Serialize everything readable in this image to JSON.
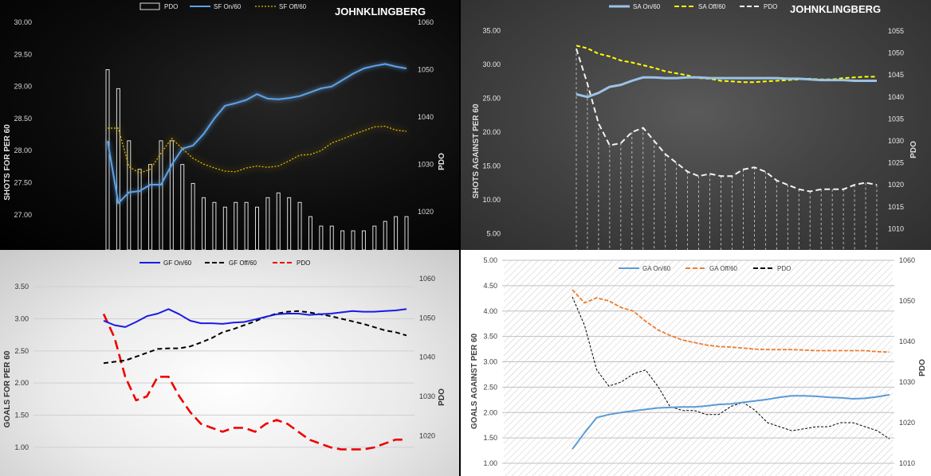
{
  "chart_data": [
    {
      "id": "p1",
      "type": "line+bar",
      "watermark": "JOHNKLINGBERG",
      "ylabel": "SHOTS FOR PER 60",
      "y2label": "PDO",
      "ylim": [
        26.75,
        30.0
      ],
      "yticks": [
        "30.00",
        "29.50",
        "29.00",
        "28.50",
        "28.00",
        "27.50",
        "27.00"
      ],
      "y2lim": [
        1016,
        1060
      ],
      "y2ticks": [
        "1060",
        "1050",
        "1040",
        "1030",
        "1020"
      ],
      "colors": {
        "on": "#5ea2e6",
        "off": "#e8c000",
        "pdo": "#dcdcdc"
      },
      "legend": {
        "pdo": "PDO",
        "on": "SF On/60",
        "off": "SF Off/60"
      },
      "series": [
        {
          "name": "SF On/60",
          "values": [
            28.15,
            27.18,
            27.35,
            27.37,
            27.47,
            27.47,
            27.78,
            28.03,
            28.08,
            28.26,
            28.5,
            28.7,
            28.74,
            28.79,
            28.88,
            28.81,
            28.8,
            28.82,
            28.85,
            28.91,
            28.97,
            29.0,
            29.1,
            29.2,
            29.28,
            29.32,
            29.35,
            29.31,
            29.28
          ]
        },
        {
          "name": "SF Off/60",
          "values": [
            28.35,
            28.35,
            27.75,
            27.65,
            27.71,
            27.96,
            28.19,
            28.03,
            27.88,
            27.79,
            27.73,
            27.68,
            27.67,
            27.73,
            27.76,
            27.74,
            27.76,
            27.84,
            27.93,
            27.94,
            28.0,
            28.12,
            28.18,
            28.25,
            28.31,
            28.37,
            28.38,
            28.32,
            28.3
          ]
        },
        {
          "name": "PDO",
          "values": [
            1050,
            1046,
            1035,
            1029,
            1030,
            1035,
            1035,
            1030,
            1026,
            1023,
            1022,
            1021,
            1022,
            1022,
            1021,
            1023,
            1024,
            1023,
            1022,
            1019,
            1017,
            1017,
            1016,
            1016,
            1016,
            1017,
            1018,
            1019,
            1019
          ]
        }
      ]
    },
    {
      "id": "p2",
      "type": "line",
      "watermark": "JOHNKLINGBERG",
      "ylabel": "SHOTS AGAINST PER 60",
      "y2label": "PDO",
      "ylim": [
        3.75,
        36.25
      ],
      "yticks": [
        "35.00",
        "30.00",
        "25.00",
        "20.00",
        "15.00",
        "10.00",
        "5.00"
      ],
      "y2lim": [
        1007,
        1057
      ],
      "y2ticks": [
        "1055",
        "1050",
        "1045",
        "1040",
        "1035",
        "1030",
        "1025",
        "1020",
        "1015",
        "1010"
      ],
      "colors": {
        "on": "#9bc2e6",
        "off": "#ffff00",
        "pdo": "#f2f2f2"
      },
      "legend": {
        "on": "SA On/60",
        "off": "SA Off/60",
        "pdo": "PDO"
      },
      "series": [
        {
          "name": "SA On/60",
          "values": [
            25.6,
            25.2,
            25.8,
            26.7,
            27.0,
            27.6,
            28.1,
            28.1,
            28.0,
            28.0,
            28.1,
            28.1,
            28.0,
            28.0,
            28.0,
            28.0,
            28.0,
            28.0,
            28.0,
            27.9,
            27.9,
            27.8,
            27.7,
            27.7,
            27.7,
            27.6,
            27.6,
            27.6
          ]
        },
        {
          "name": "SA Off/60",
          "values": [
            32.8,
            32.4,
            31.6,
            31.2,
            30.6,
            30.3,
            29.9,
            29.5,
            29.0,
            28.7,
            28.4,
            28.0,
            27.9,
            27.6,
            27.5,
            27.4,
            27.4,
            27.5,
            27.6,
            27.7,
            27.8,
            27.9,
            27.8,
            27.8,
            28.0,
            28.1,
            28.2,
            28.2
          ]
        },
        {
          "name": "PDO",
          "values": [
            1051,
            1043,
            1034,
            1029,
            1029.5,
            1032,
            1033,
            1030,
            1027,
            1025,
            1023,
            1022,
            1022.5,
            1022,
            1022,
            1023.5,
            1024,
            1023,
            1021,
            1020,
            1019,
            1018.5,
            1019,
            1019,
            1019,
            1020,
            1020.5,
            1020
          ]
        }
      ]
    },
    {
      "id": "p3",
      "type": "line",
      "ylabel": "GOALS FOR PER 60",
      "y2label": "PDO",
      "ylim": [
        0.875,
        3.625
      ],
      "yticks": [
        "3.50",
        "3.00",
        "2.50",
        "2.00",
        "1.50",
        "1.00"
      ],
      "y2lim": [
        1015,
        1060
      ],
      "y2ticks": [
        "1060",
        "1050",
        "1040",
        "1030",
        "1020"
      ],
      "colors": {
        "on": "#1a1ae6",
        "off": "#000000",
        "pdo": "#ee0000"
      },
      "legend": {
        "on": "GF On/60",
        "off": "GF Off/60",
        "pdo": "PDO"
      },
      "series": [
        {
          "name": "GF On/60",
          "values": [
            2.97,
            2.9,
            2.87,
            2.95,
            3.04,
            3.08,
            3.15,
            3.07,
            2.97,
            2.93,
            2.93,
            2.92,
            2.94,
            2.95,
            2.99,
            3.03,
            3.07,
            3.08,
            3.08,
            3.06,
            3.07,
            3.08,
            3.1,
            3.12,
            3.11,
            3.11,
            3.12,
            3.13,
            3.15
          ]
        },
        {
          "name": "GF Off/60",
          "values": [
            2.31,
            2.33,
            2.35,
            2.41,
            2.47,
            2.53,
            2.54,
            2.54,
            2.57,
            2.63,
            2.7,
            2.79,
            2.84,
            2.9,
            2.96,
            3.03,
            3.08,
            3.11,
            3.12,
            3.1,
            3.07,
            3.04,
            3.0,
            2.96,
            2.92,
            2.87,
            2.82,
            2.79,
            2.74
          ]
        },
        {
          "name": "PDO",
          "values": [
            1051,
            1045,
            1035,
            1029,
            1030,
            1035,
            1035,
            1030,
            1026,
            1023,
            1022,
            1021,
            1022,
            1022,
            1021,
            1023,
            1024,
            1023,
            1021,
            1019,
            1018,
            1017,
            1016.5,
            1016.5,
            1016.5,
            1017,
            1018,
            1019,
            1019
          ]
        }
      ]
    },
    {
      "id": "p4",
      "type": "line",
      "ylabel": "GOALS AGAINST PER 60",
      "y2label": "PDO",
      "ylim": [
        1.0,
        5.0
      ],
      "yticks": [
        "5.00",
        "4.50",
        "4.00",
        "3.50",
        "3.00",
        "2.50",
        "2.00",
        "1.50",
        "1.00"
      ],
      "y2lim": [
        1010,
        1060
      ],
      "y2ticks": [
        "1060",
        "1050",
        "1040",
        "1030",
        "1020",
        "1010"
      ],
      "colors": {
        "on": "#5b9bd5",
        "off": "#ed7d31",
        "pdo": "#000000"
      },
      "legend": {
        "on": "GA On/60",
        "off": "GA Off/60",
        "pdo": "PDO"
      },
      "series": [
        {
          "name": "GA On/60",
          "values": [
            1.28,
            1.6,
            1.9,
            1.96,
            2.0,
            2.03,
            2.06,
            2.09,
            2.1,
            2.11,
            2.11,
            2.13,
            2.16,
            2.17,
            2.2,
            2.23,
            2.26,
            2.3,
            2.33,
            2.33,
            2.32,
            2.3,
            2.29,
            2.27,
            2.28,
            2.31,
            2.35
          ]
        },
        {
          "name": "GA Off/60",
          "values": [
            4.42,
            4.16,
            4.26,
            4.2,
            4.07,
            4.0,
            3.8,
            3.63,
            3.52,
            3.43,
            3.38,
            3.33,
            3.3,
            3.29,
            3.27,
            3.25,
            3.24,
            3.24,
            3.24,
            3.23,
            3.22,
            3.22,
            3.22,
            3.22,
            3.22,
            3.2,
            3.19
          ]
        },
        {
          "name": "PDO",
          "values": [
            1051,
            1044,
            1033,
            1029,
            1030,
            1032,
            1033,
            1029,
            1024,
            1023,
            1023,
            1022,
            1022,
            1024,
            1025,
            1023,
            1020,
            1019,
            1018,
            1018.5,
            1019,
            1019,
            1020,
            1020,
            1019,
            1018,
            1016
          ]
        }
      ]
    }
  ]
}
